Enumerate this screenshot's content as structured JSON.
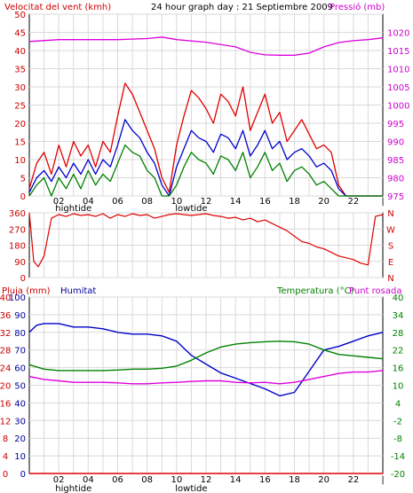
{
  "header": {
    "title": "24 hour graph day : 21 Septiembre 2009",
    "left_label": "Velocitat del vent (kmh)",
    "right_label": "Pressió (mb)"
  },
  "colors": {
    "wind_gust": "#e00000",
    "wind_avg": "#0000cc",
    "wind_min": "#008000",
    "pressure": "#dd00dd",
    "direction": "#e00000",
    "humidity": "#0000cc",
    "temperature": "#008000",
    "dewpoint": "#dd00dd",
    "rain": "#e00000",
    "axis_red": "#cc0000",
    "axis_blue": "#000099",
    "axis_green": "#008000",
    "axis_magenta": "#cc00cc"
  },
  "x_axis": {
    "ticks": [
      "02",
      "04",
      "06",
      "08",
      "10",
      "12",
      "14",
      "16",
      "18",
      "20",
      "22",
      "|"
    ],
    "tide_labels": [
      {
        "text": "hightide",
        "hour": 3
      },
      {
        "text": "lowtide",
        "hour": 11
      }
    ]
  },
  "chart_data": [
    {
      "id": "wind",
      "type": "line",
      "x_unit": "hour",
      "ylabel": "Velocitat del vent (kmh)",
      "ylim": [
        0,
        50
      ],
      "y_ticks": [
        0,
        5,
        10,
        15,
        20,
        25,
        30,
        35,
        40,
        45,
        50
      ],
      "y2label": "Pressió (mb)",
      "y2lim": [
        975,
        1025
      ],
      "y2_ticks": [
        975,
        980,
        985,
        990,
        995,
        1000,
        1005,
        1010,
        1015,
        1020
      ],
      "grid": true,
      "series": [
        {
          "key": "gust",
          "color": "#e00000",
          "axis": "left",
          "x": [
            0,
            0.5,
            1,
            1.5,
            2,
            2.5,
            3,
            3.5,
            4,
            4.5,
            5,
            5.5,
            6,
            6.5,
            7,
            7.5,
            8,
            8.5,
            9,
            9.5,
            10,
            10.5,
            11,
            11.5,
            12,
            12.5,
            13,
            13.5,
            14,
            14.5,
            15,
            15.5,
            16,
            16.5,
            17,
            17.5,
            18,
            18.5,
            19,
            19.5,
            20,
            20.5,
            21,
            21.5,
            22,
            22.5,
            23,
            23.5,
            24
          ],
          "y": [
            2,
            9,
            12,
            6,
            14,
            8,
            15,
            11,
            14,
            8,
            15,
            12,
            22,
            31,
            28,
            23,
            18,
            13,
            5,
            1,
            14,
            22,
            29,
            27,
            24,
            20,
            28,
            26,
            22,
            30,
            18,
            23,
            28,
            20,
            23,
            15,
            18,
            21,
            17,
            13,
            14,
            12,
            3,
            0,
            0,
            0,
            0,
            0,
            0
          ]
        },
        {
          "key": "average",
          "color": "#0000cc",
          "axis": "left",
          "x": [
            0,
            0.5,
            1,
            1.5,
            2,
            2.5,
            3,
            3.5,
            4,
            4.5,
            5,
            5.5,
            6,
            6.5,
            7,
            7.5,
            8,
            8.5,
            9,
            9.5,
            10,
            10.5,
            11,
            11.5,
            12,
            12.5,
            13,
            13.5,
            14,
            14.5,
            15,
            15.5,
            16,
            16.5,
            17,
            17.5,
            18,
            18.5,
            19,
            19.5,
            20,
            20.5,
            21,
            21.5,
            22,
            22.5,
            23,
            23.5,
            24
          ],
          "y": [
            1,
            5,
            7,
            4,
            8,
            5,
            9,
            6,
            10,
            6,
            10,
            8,
            14,
            21,
            18,
            16,
            12,
            9,
            3,
            0,
            8,
            13,
            18,
            16,
            15,
            12,
            17,
            16,
            13,
            18,
            11,
            14,
            18,
            13,
            15,
            10,
            12,
            13,
            11,
            8,
            9,
            7,
            2,
            0,
            0,
            0,
            0,
            0,
            0
          ]
        },
        {
          "key": "minimum",
          "color": "#008000",
          "axis": "left",
          "x": [
            0,
            0.5,
            1,
            1.5,
            2,
            2.5,
            3,
            3.5,
            4,
            4.5,
            5,
            5.5,
            6,
            6.5,
            7,
            7.5,
            8,
            8.5,
            9,
            9.5,
            10,
            10.5,
            11,
            11.5,
            12,
            12.5,
            13,
            13.5,
            14,
            14.5,
            15,
            15.5,
            16,
            16.5,
            17,
            17.5,
            18,
            18.5,
            19,
            19.5,
            20,
            20.5,
            21,
            21.5,
            22,
            22.5,
            23,
            23.5,
            24
          ],
          "y": [
            0,
            3,
            5,
            0,
            5,
            2,
            6,
            2,
            7,
            3,
            6,
            4,
            9,
            14,
            12,
            11,
            7,
            5,
            0,
            0,
            3,
            8,
            12,
            10,
            9,
            6,
            11,
            10,
            7,
            12,
            5,
            8,
            12,
            7,
            9,
            4,
            7,
            8,
            6,
            3,
            4,
            2,
            0,
            0,
            0,
            0,
            0,
            0,
            0
          ]
        },
        {
          "key": "pressure",
          "color": "#dd00dd",
          "axis": "right",
          "x": [
            0,
            2,
            4,
            6,
            8,
            9,
            10,
            12,
            14,
            15,
            16,
            17,
            18,
            19,
            20,
            21,
            22,
            23,
            24
          ],
          "y": [
            1017.5,
            1018,
            1018,
            1018,
            1018.3,
            1018.7,
            1018,
            1017.3,
            1016,
            1014.5,
            1013.8,
            1013.7,
            1013.7,
            1014.3,
            1016,
            1017.2,
            1017.7,
            1018,
            1018.5
          ]
        }
      ]
    },
    {
      "id": "direction",
      "type": "line",
      "x_unit": "hour",
      "ylabel": "",
      "ylim": [
        0,
        360
      ],
      "y_ticks": [
        0,
        90,
        180,
        270,
        360
      ],
      "y2_labels": [
        "N",
        "W",
        "S",
        "E",
        "N"
      ],
      "grid": true,
      "series": [
        {
          "key": "direction",
          "color": "#e00000",
          "x": [
            0,
            0.3,
            0.6,
            1,
            1.5,
            2,
            2.5,
            3,
            3.5,
            4,
            4.5,
            5,
            5.5,
            6,
            6.5,
            7,
            7.5,
            8,
            8.5,
            9,
            9.5,
            10,
            10.5,
            11,
            11.5,
            12,
            12.5,
            13,
            13.5,
            14,
            14.5,
            15,
            15.5,
            16,
            16.5,
            17,
            17.5,
            18,
            18.5,
            19,
            19.5,
            20,
            20.5,
            21,
            21.5,
            22,
            22.5,
            23,
            23.5,
            24
          ],
          "y": [
            360,
            90,
            60,
            120,
            330,
            350,
            340,
            355,
            345,
            350,
            340,
            355,
            330,
            350,
            340,
            355,
            345,
            350,
            330,
            340,
            350,
            355,
            350,
            345,
            350,
            355,
            345,
            340,
            330,
            335,
            320,
            330,
            310,
            320,
            300,
            280,
            260,
            230,
            200,
            190,
            170,
            160,
            140,
            120,
            110,
            100,
            80,
            70,
            340,
            350
          ]
        }
      ]
    },
    {
      "id": "climate",
      "type": "line",
      "x_unit": "hour",
      "ylabel": "Pluja (mm)",
      "ylim": [
        0,
        100
      ],
      "y_ticks": [
        0,
        10,
        20,
        30,
        40,
        50,
        60,
        70,
        80,
        90,
        100
      ],
      "y_ticks_inner": [
        0,
        4,
        8,
        12,
        16,
        20,
        24,
        28,
        32,
        36,
        40
      ],
      "y2label": "Temperatura (°C)",
      "y2lim": [
        -20,
        40
      ],
      "y2_ticks": [
        -20,
        -14,
        -8,
        -2,
        4,
        10,
        16,
        22,
        28,
        34,
        40
      ],
      "grid": true,
      "series": [
        {
          "name": "Humitat",
          "key": "humidity",
          "color": "#0000cc",
          "axis": "left",
          "x": [
            0,
            0.5,
            1,
            2,
            3,
            4,
            5,
            6,
            7,
            8,
            9,
            10,
            11,
            12,
            13,
            14,
            15,
            16,
            17,
            18,
            19,
            20,
            21,
            22,
            23,
            24
          ],
          "y": [
            80,
            84,
            85,
            85,
            83,
            83,
            82,
            80,
            79,
            79,
            78,
            75,
            67,
            62,
            57,
            54,
            51,
            48,
            44,
            46,
            58,
            70,
            72,
            75,
            78,
            80
          ]
        },
        {
          "key": "temperature",
          "color": "#008000",
          "axis": "right",
          "x": [
            0,
            1,
            2,
            3,
            4,
            5,
            6,
            7,
            8,
            9,
            10,
            11,
            12,
            13,
            14,
            15,
            16,
            17,
            18,
            19,
            20,
            21,
            22,
            23,
            24
          ],
          "y": [
            17,
            15.5,
            15,
            15,
            15,
            15,
            15.2,
            15.5,
            15.5,
            15.8,
            16.5,
            18.5,
            21,
            23,
            24,
            24.5,
            24.8,
            25,
            24.8,
            24,
            22,
            20.5,
            20,
            19.5,
            19
          ]
        },
        {
          "name": "Punt rosada",
          "key": "dewpoint",
          "color": "#dd00dd",
          "axis": "right",
          "x": [
            0,
            1,
            2,
            3,
            4,
            5,
            6,
            7,
            8,
            9,
            10,
            11,
            12,
            13,
            14,
            15,
            16,
            17,
            18,
            19,
            20,
            21,
            22,
            23,
            24
          ],
          "y": [
            13,
            12,
            11.5,
            11,
            11,
            11,
            10.8,
            10.5,
            10.5,
            10.8,
            11,
            11.3,
            11.5,
            11.5,
            11,
            10.8,
            11,
            10.5,
            11,
            12,
            13,
            14,
            14.5,
            14.5,
            15
          ]
        },
        {
          "key": "rain",
          "color": "#e00000",
          "axis": "left",
          "x": [
            0,
            24
          ],
          "y": [
            0,
            0
          ]
        }
      ]
    }
  ]
}
